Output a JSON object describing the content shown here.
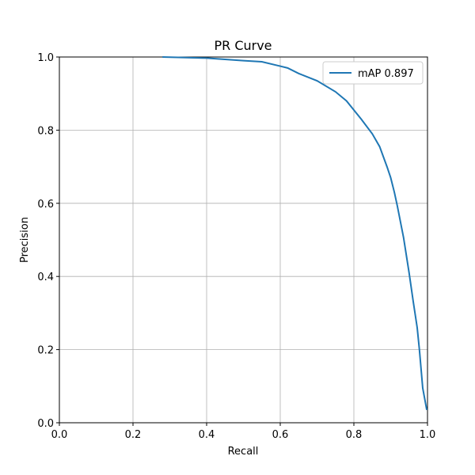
{
  "chart_data": {
    "type": "line",
    "title": "PR Curve",
    "xlabel": "Recall",
    "ylabel": "Precision",
    "x": [
      0.28,
      0.4,
      0.5,
      0.55,
      0.6,
      0.62,
      0.65,
      0.7,
      0.75,
      0.78,
      0.8,
      0.82,
      0.85,
      0.87,
      0.89,
      0.9,
      0.91,
      0.918,
      0.935,
      0.95,
      0.961,
      0.972,
      0.978,
      0.987,
      0.998
    ],
    "series": [
      {
        "name": "mAP 0.897",
        "color": "#1f77b4",
        "values": [
          1.0,
          0.997,
          0.99,
          0.987,
          0.975,
          0.97,
          0.955,
          0.935,
          0.905,
          0.88,
          0.855,
          0.83,
          0.79,
          0.755,
          0.7,
          0.67,
          0.63,
          0.593,
          0.506,
          0.41,
          0.333,
          0.26,
          0.2,
          0.095,
          0.035
        ]
      }
    ],
    "xlim": [
      0,
      1
    ],
    "ylim": [
      0,
      1
    ],
    "xticks": [
      {
        "value": 0,
        "label": "0.0"
      },
      0.2,
      0.4,
      0.6,
      0.8,
      {
        "value": 1,
        "label": "1.0"
      }
    ],
    "yticks": [
      {
        "value": 0,
        "label": "0.0"
      },
      0.2,
      0.4,
      0.6,
      0.8,
      {
        "value": 1,
        "label": "1.0"
      }
    ],
    "grid": true,
    "legend": "upper right"
  }
}
